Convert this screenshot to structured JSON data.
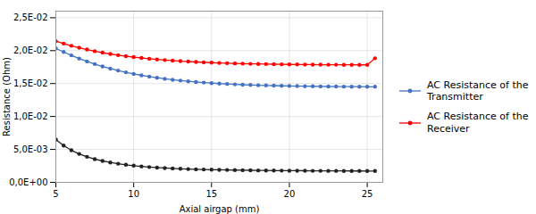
{
  "chart_data": {
    "type": "line",
    "xlabel": "Axial airgap (mm)",
    "ylabel": "Resistance (Ohm)",
    "x": [
      5,
      5.5,
      6,
      6.5,
      7,
      7.5,
      8,
      8.5,
      9,
      9.5,
      10,
      10.5,
      11,
      11.5,
      12,
      12.5,
      13,
      13.5,
      14,
      14.5,
      15,
      15.5,
      16,
      16.5,
      17,
      17.5,
      18,
      18.5,
      19,
      19.5,
      20,
      20.5,
      21,
      21.5,
      22,
      22.5,
      23,
      23.5,
      24,
      24.5,
      25,
      25.5
    ],
    "series": [
      {
        "name": "AC Resistance of the\nTransmitter",
        "color": "#4472C4",
        "marker": "circle",
        "values": [
          0.02035,
          0.0198,
          0.01928,
          0.0188,
          0.01836,
          0.01796,
          0.0176,
          0.01727,
          0.01698,
          0.01671,
          0.01647,
          0.01625,
          0.01606,
          0.01588,
          0.01572,
          0.01558,
          0.01546,
          0.01534,
          0.01524,
          0.01515,
          0.01507,
          0.015,
          0.01494,
          0.01488,
          0.01483,
          0.01479,
          0.01475,
          0.01472,
          0.01469,
          0.01466,
          0.01464,
          0.01462,
          0.0146,
          0.01459,
          0.01457,
          0.01456,
          0.01455,
          0.01454,
          0.01453,
          0.01453,
          0.01452,
          0.01452
        ]
      },
      {
        "name": "AC Resistance of the\nReceiver",
        "color": "#FF0000",
        "marker": "circle",
        "values": [
          0.02145,
          0.02108,
          0.02074,
          0.02044,
          0.02017,
          0.01992,
          0.0197,
          0.0195,
          0.01932,
          0.01916,
          0.01902,
          0.01889,
          0.01877,
          0.01867,
          0.01857,
          0.01849,
          0.01841,
          0.01834,
          0.01828,
          0.01823,
          0.01818,
          0.01813,
          0.0181,
          0.01806,
          0.01803,
          0.018,
          0.01798,
          0.01796,
          0.01794,
          0.01792,
          0.01791,
          0.0179,
          0.01789,
          0.01788,
          0.01787,
          0.01786,
          0.01786,
          0.01785,
          0.01785,
          0.01784,
          0.01784,
          0.01884
        ]
      },
      {
        "color": "#222222",
        "marker": "circle",
        "values": [
          0.0065,
          0.00558,
          0.00487,
          0.00432,
          0.00388,
          0.00353,
          0.00325,
          0.00302,
          0.00283,
          0.00267,
          0.00253,
          0.00242,
          0.00232,
          0.00224,
          0.00217,
          0.00211,
          0.00206,
          0.00202,
          0.00198,
          0.00195,
          0.00192,
          0.0019,
          0.00188,
          0.00186,
          0.00184,
          0.00183,
          0.00181,
          0.0018,
          0.00179,
          0.00178,
          0.00177,
          0.00177,
          0.00176,
          0.00175,
          0.00175,
          0.00174,
          0.00174,
          0.00173,
          0.00173,
          0.00173,
          0.00172,
          0.00172
        ]
      }
    ],
    "xlim": [
      5,
      26
    ],
    "ylim": [
      0,
      0.026
    ],
    "xticks": [
      5,
      10,
      15,
      20,
      25
    ],
    "yticks": [
      {
        "value": 0.0,
        "label": "0,0E+00"
      },
      {
        "value": 0.005,
        "label": "5,0E-03"
      },
      {
        "value": 0.01,
        "label": "1,0E-02"
      },
      {
        "value": 0.015,
        "label": "1,5E-02"
      },
      {
        "value": 0.02,
        "label": "2,0E-02"
      },
      {
        "value": 0.025,
        "label": "2,5E-02"
      }
    ],
    "grid": true,
    "legend": "right"
  }
}
